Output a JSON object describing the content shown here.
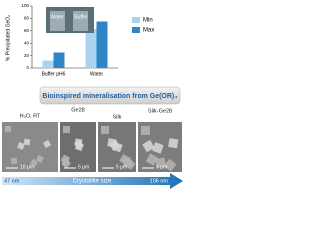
{
  "chart_data": {
    "type": "bar",
    "y_label": "% Precipitated GeO₂",
    "categories": [
      "Buffer pH6",
      "Water"
    ],
    "series": [
      {
        "name": "Min",
        "color": "#a9d3ee",
        "values": [
          12,
          63
        ]
      },
      {
        "name": "Max",
        "color": "#2e86c8",
        "values": [
          25,
          75
        ]
      }
    ],
    "ylim": [
      0,
      100
    ],
    "yticks": [
      0,
      20,
      40,
      60,
      80,
      100
    ],
    "legend": "upper right"
  },
  "inset_photo": {
    "labels": [
      "Water",
      "Buffer"
    ]
  },
  "banner": "Bioinspired mineralisation from Ge(OR)₄",
  "panels": [
    {
      "label": "H₂O, RT",
      "scale": "10 μm"
    },
    {
      "label": "Ge28",
      "scale": "5 μm"
    },
    {
      "label": "Silk",
      "scale": "5 μm"
    },
    {
      "label": "Silk-Ge28",
      "scale": "5 μm"
    }
  ],
  "arrow": {
    "start": "47 nm",
    "title": "Crystallite size",
    "end": "106 nm"
  }
}
